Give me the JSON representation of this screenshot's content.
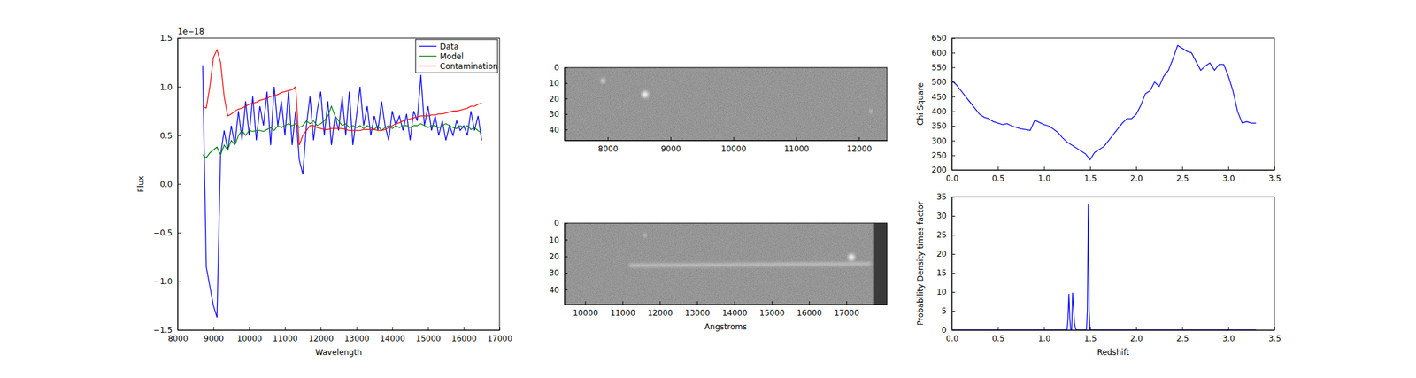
{
  "chart_data": [
    {
      "type": "line",
      "xlabel": "Wavelength",
      "ylabel": "Flux",
      "annotations": [
        "1e−18"
      ],
      "legend": "upper right",
      "xlim": [
        8000,
        17000
      ],
      "xticks": [
        8000,
        9000,
        10000,
        11000,
        12000,
        13000,
        14000,
        15000,
        16000,
        17000
      ],
      "ylim": [
        -1.5,
        1.5
      ],
      "yticks": [
        {
          "value": -1.5,
          "label": "−1.5"
        },
        {
          "value": -1.0,
          "label": "−1.0"
        },
        {
          "value": -0.5,
          "label": "−0.5"
        },
        {
          "value": 0,
          "label": "0.0"
        },
        0.5,
        {
          "value": 1.0,
          "label": "1.0"
        },
        1.5
      ],
      "x": [
        8700,
        8800,
        8900,
        9000,
        9100,
        9200,
        9300,
        9400,
        9500,
        9600,
        9700,
        9800,
        9900,
        10000,
        10100,
        10200,
        10300,
        10400,
        10500,
        10600,
        10700,
        10800,
        10900,
        11000,
        11100,
        11200,
        11300,
        11400,
        11500,
        11600,
        11700,
        11800,
        11900,
        12000,
        12100,
        12200,
        12300,
        12400,
        12500,
        12600,
        12700,
        12800,
        12900,
        13000,
        13100,
        13200,
        13300,
        13400,
        13500,
        13600,
        13700,
        13800,
        13900,
        14000,
        14100,
        14200,
        14300,
        14400,
        14500,
        14600,
        14700,
        14800,
        14900,
        15000,
        15100,
        15200,
        15300,
        15400,
        15500,
        15600,
        15700,
        15800,
        15900,
        16000,
        16100,
        16200,
        16300,
        16400,
        16500
      ],
      "series": [
        {
          "name": "Data",
          "color": "#0000ff",
          "values": [
            1.22,
            -0.85,
            -1.05,
            -1.25,
            -1.37,
            0.3,
            0.55,
            0.35,
            0.6,
            0.4,
            0.75,
            0.45,
            0.85,
            0.5,
            0.9,
            0.45,
            0.8,
            0.6,
            0.95,
            0.4,
            1.0,
            0.6,
            0.85,
            0.5,
            0.95,
            0.4,
            0.75,
            0.25,
            0.1,
            0.6,
            0.9,
            0.45,
            0.75,
            0.95,
            0.5,
            0.85,
            0.4,
            0.7,
            0.55,
            0.9,
            0.5,
            0.95,
            0.4,
            0.7,
            1.0,
            0.6,
            0.8,
            0.5,
            0.7,
            0.55,
            0.85,
            0.6,
            0.45,
            0.75,
            0.6,
            0.7,
            0.55,
            0.72,
            0.45,
            0.75,
            0.65,
            1.12,
            0.6,
            0.8,
            0.55,
            0.7,
            0.5,
            0.65,
            0.45,
            0.6,
            0.5,
            0.65,
            0.55,
            0.6,
            0.5,
            0.75,
            0.55,
            0.7,
            0.45
          ]
        },
        {
          "name": "Model",
          "color": "#008000",
          "values": [
            0.3,
            0.27,
            0.32,
            0.35,
            0.38,
            0.3,
            0.4,
            0.35,
            0.45,
            0.4,
            0.5,
            0.55,
            0.5,
            0.55,
            0.54,
            0.55,
            0.55,
            0.54,
            0.56,
            0.58,
            0.55,
            0.6,
            0.58,
            0.6,
            0.62,
            0.6,
            0.62,
            0.58,
            0.6,
            0.65,
            0.62,
            0.65,
            0.6,
            0.62,
            0.65,
            0.7,
            0.8,
            0.7,
            0.65,
            0.6,
            0.62,
            0.58,
            0.6,
            0.58,
            0.6,
            0.57,
            0.6,
            0.58,
            0.56,
            0.6,
            0.55,
            0.58,
            0.6,
            0.57,
            0.6,
            0.58,
            0.6,
            0.6,
            0.58,
            0.6,
            0.6,
            0.62,
            0.6,
            0.58,
            0.6,
            0.6,
            0.58,
            0.6,
            0.62,
            0.6,
            0.58,
            0.57,
            0.6,
            0.58,
            0.6,
            0.56,
            0.58,
            0.55,
            0.52
          ]
        },
        {
          "name": "Contamination",
          "color": "#ff0000",
          "values": [
            0.8,
            0.78,
            1.0,
            1.3,
            1.38,
            1.25,
            0.9,
            0.7,
            0.72,
            0.75,
            0.77,
            0.78,
            0.8,
            0.82,
            0.83,
            0.84,
            0.86,
            0.87,
            0.88,
            0.9,
            0.91,
            0.92,
            0.94,
            0.95,
            0.96,
            0.97,
            1.0,
            0.4,
            0.5,
            0.55,
            0.6,
            0.6,
            0.58,
            0.57,
            0.56,
            0.56,
            0.57,
            0.57,
            0.57,
            0.57,
            0.56,
            0.55,
            0.55,
            0.55,
            0.55,
            0.56,
            0.56,
            0.56,
            0.56,
            0.55,
            0.55,
            0.56,
            0.58,
            0.6,
            0.62,
            0.63,
            0.65,
            0.66,
            0.67,
            0.68,
            0.69,
            0.7,
            0.7,
            0.7,
            0.71,
            0.71,
            0.72,
            0.72,
            0.73,
            0.74,
            0.75,
            0.75,
            0.76,
            0.77,
            0.78,
            0.8,
            0.8,
            0.82,
            0.83
          ]
        }
      ]
    },
    {
      "type": "image",
      "xlim": [
        7310,
        12446
      ],
      "xticks": [
        8000,
        9000,
        10000,
        11000,
        12000
      ],
      "ylim": [
        47,
        0
      ],
      "yticks": [
        0,
        10,
        20,
        30,
        40
      ]
    },
    {
      "type": "image",
      "xlabel": "Angstroms",
      "xlim": [
        9443,
        18090
      ],
      "xticks": [
        10000,
        11000,
        12000,
        13000,
        14000,
        15000,
        16000,
        17000
      ],
      "ylim": [
        49,
        0
      ],
      "yticks": [
        0,
        10,
        20,
        30,
        40
      ]
    },
    {
      "type": "line",
      "ylabel": "Chi Square",
      "xlim": [
        0,
        3.5
      ],
      "xticks": [
        {
          "value": 0,
          "label": "0.0"
        },
        0.5,
        {
          "value": 1,
          "label": "1.0"
        },
        1.5,
        {
          "value": 2,
          "label": "2.0"
        },
        2.5,
        {
          "value": 3,
          "label": "3.0"
        },
        3.5
      ],
      "ylim": [
        200,
        650
      ],
      "yticks": [
        200,
        250,
        300,
        350,
        400,
        450,
        500,
        550,
        600,
        650
      ],
      "x": [
        0,
        0.05,
        0.1,
        0.15,
        0.2,
        0.25,
        0.3,
        0.35,
        0.4,
        0.45,
        0.5,
        0.55,
        0.6,
        0.65,
        0.7,
        0.75,
        0.8,
        0.85,
        0.9,
        0.95,
        1.0,
        1.05,
        1.1,
        1.15,
        1.2,
        1.25,
        1.3,
        1.35,
        1.4,
        1.45,
        1.5,
        1.55,
        1.6,
        1.65,
        1.7,
        1.75,
        1.8,
        1.85,
        1.9,
        1.95,
        2.0,
        2.05,
        2.1,
        2.15,
        2.2,
        2.25,
        2.3,
        2.35,
        2.4,
        2.45,
        2.5,
        2.55,
        2.6,
        2.65,
        2.7,
        2.75,
        2.8,
        2.85,
        2.9,
        2.95,
        3.0,
        3.05,
        3.1,
        3.15,
        3.2,
        3.25,
        3.3
      ],
      "series": [
        {
          "color": "#0000ff",
          "values": [
            505,
            490,
            470,
            450,
            430,
            410,
            390,
            380,
            375,
            365,
            360,
            355,
            358,
            350,
            345,
            340,
            338,
            335,
            370,
            362,
            355,
            350,
            340,
            328,
            310,
            295,
            285,
            275,
            265,
            255,
            235,
            260,
            270,
            280,
            300,
            320,
            340,
            360,
            375,
            375,
            390,
            420,
            460,
            470,
            500,
            485,
            520,
            540,
            580,
            625,
            615,
            605,
            600,
            570,
            540,
            555,
            565,
            540,
            560,
            560,
            520,
            470,
            400,
            360,
            365,
            360,
            360
          ]
        }
      ]
    },
    {
      "type": "line",
      "xlabel": "Redshift",
      "ylabel": "Probability Density times factor",
      "xlim": [
        0,
        3.5
      ],
      "xticks": [
        {
          "value": 0,
          "label": "0.0"
        },
        0.5,
        {
          "value": 1,
          "label": "1.0"
        },
        1.5,
        {
          "value": 2,
          "label": "2.0"
        },
        2.5,
        {
          "value": 3,
          "label": "3.0"
        },
        3.5
      ],
      "ylim": [
        0,
        35
      ],
      "yticks": [
        0,
        5,
        10,
        15,
        20,
        25,
        30,
        35
      ],
      "x": [
        0,
        1.2,
        1.25,
        1.26,
        1.27,
        1.28,
        1.29,
        1.3,
        1.31,
        1.32,
        1.33,
        1.34,
        1.35,
        1.46,
        1.47,
        1.48,
        1.49,
        1.5,
        3.3
      ],
      "series": [
        {
          "color": "#0000ff",
          "values": [
            0,
            0,
            0,
            3,
            9.5,
            3,
            0,
            0,
            9.8,
            6,
            2,
            0.5,
            0,
            0,
            5,
            33,
            5,
            0,
            0
          ]
        }
      ]
    }
  ]
}
